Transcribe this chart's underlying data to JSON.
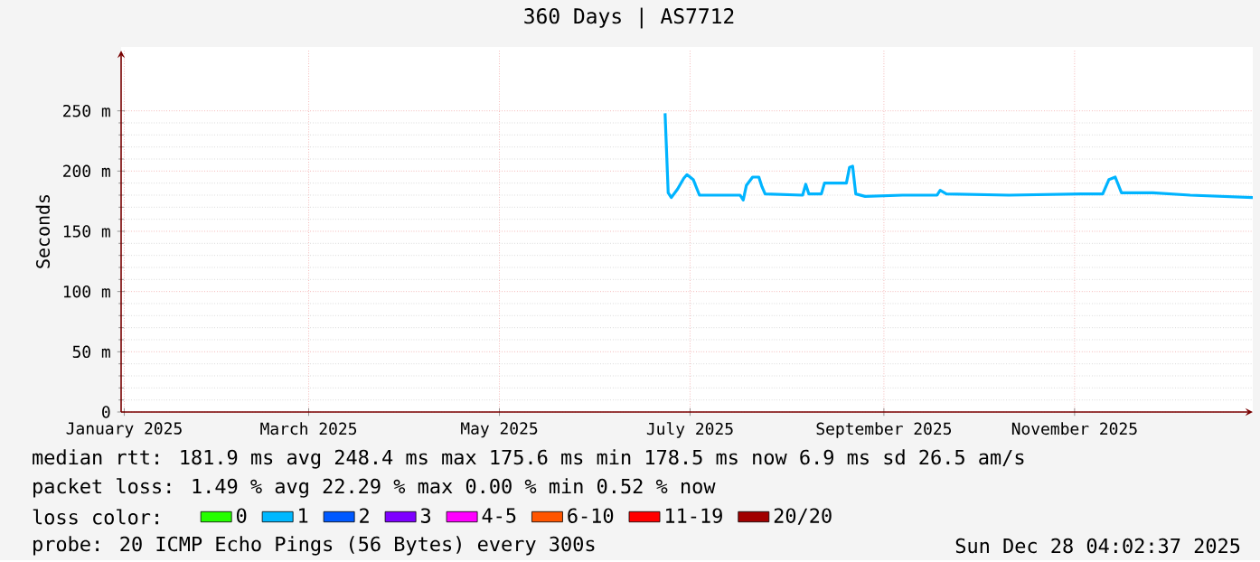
{
  "chart_data": {
    "type": "line",
    "title": "360 Days | AS7712",
    "ylabel": "Seconds",
    "xlim": [
      "2024-12-31",
      "2025-12-28"
    ],
    "xticks": [
      {
        "value": "2025-01-01",
        "label": "January 2025"
      },
      {
        "value": "2025-03-01",
        "label": "March 2025"
      },
      {
        "value": "2025-05-01",
        "label": "May 2025"
      },
      {
        "value": "2025-07-01",
        "label": "July 2025"
      },
      {
        "value": "2025-09-01",
        "label": "September 2025"
      },
      {
        "value": "2025-11-01",
        "label": "November 2025"
      }
    ],
    "ylim": [
      0,
      300
    ],
    "yticks": [
      {
        "value": 0,
        "label": "0"
      },
      {
        "value": 50,
        "label": "50 m"
      },
      {
        "value": 100,
        "label": "100 m"
      },
      {
        "value": 150,
        "label": "150 m"
      },
      {
        "value": 200,
        "label": "200 m"
      },
      {
        "value": 250,
        "label": "250 m"
      }
    ],
    "grid": true,
    "legend": "bottom left",
    "legend_title": "loss color:",
    "line_style": "solid",
    "series": [
      {
        "color": "#00b4ff",
        "x": [
          "2025-06-23",
          "2025-06-24",
          "2025-06-25",
          "2025-06-27",
          "2025-06-29",
          "2025-06-30",
          "2025-07-02",
          "2025-07-04",
          "2025-07-17",
          "2025-07-18",
          "2025-07-19",
          "2025-07-21",
          "2025-07-23",
          "2025-07-24",
          "2025-07-25",
          "2025-08-06",
          "2025-08-07",
          "2025-08-08",
          "2025-08-12",
          "2025-08-13",
          "2025-08-20",
          "2025-08-21",
          "2025-08-22",
          "2025-08-23",
          "2025-08-26",
          "2025-09-07",
          "2025-09-18",
          "2025-09-19",
          "2025-09-21",
          "2025-10-11",
          "2025-11-03",
          "2025-11-10",
          "2025-11-12",
          "2025-11-14",
          "2025-11-16",
          "2025-11-26",
          "2025-12-08",
          "2025-12-28"
        ],
        "values": [
          248,
          182,
          178,
          185,
          194,
          197,
          193,
          180,
          180,
          176,
          188,
          195,
          195,
          187,
          181,
          180,
          189,
          181,
          181,
          190,
          190,
          203,
          204,
          181,
          179,
          180,
          180,
          184,
          181,
          180,
          181,
          181,
          193,
          195,
          182,
          182,
          180,
          178
        ]
      },
      {
        "name": "0",
        "color": "#26ff00"
      },
      {
        "name": "1",
        "color": "#00b8ff"
      },
      {
        "name": "2",
        "color": "#0059ff"
      },
      {
        "name": "3",
        "color": "#7e00ff"
      },
      {
        "name": "4-5",
        "color": "#ff00ff"
      },
      {
        "name": "6-10",
        "color": "#ff5500"
      },
      {
        "name": "11-19",
        "color": "#ff0000"
      },
      {
        "name": "20/20",
        "color": "#a10000"
      }
    ],
    "annotations": [
      "median rtt:  181.9 ms avg  248.4 ms max  175.6 ms min  178.5 ms now  6.9 ms sd  26.5   am/s",
      "packet loss: 1.49 % avg  22.29 % max  0.00 % min  0.52 % now",
      "probe:       20 ICMP Echo Pings (56 Bytes) every 300s",
      "Sun Dec 28 04:02:37 2025"
    ]
  }
}
